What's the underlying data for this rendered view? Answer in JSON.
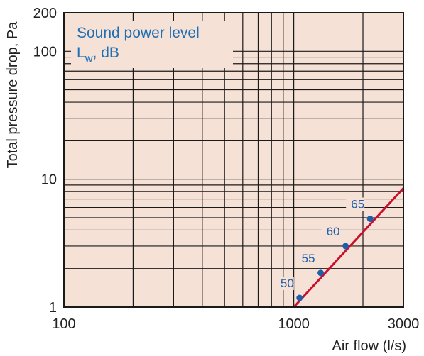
{
  "chart_data": {
    "type": "line",
    "x_scale": "log",
    "y_scale": "log",
    "xlim": [
      100,
      3000
    ],
    "ylim": [
      1,
      200
    ],
    "x_ticks": [
      {
        "value": 100,
        "label": "100"
      },
      {
        "value": 1000,
        "label": "1000"
      },
      {
        "value": 3000,
        "label": "3000"
      }
    ],
    "y_ticks": [
      {
        "value": 1,
        "label": "1"
      },
      {
        "value": 10,
        "label": "10"
      },
      {
        "value": 100,
        "label": "100"
      },
      {
        "value": 200,
        "label": "200"
      }
    ],
    "xlabel": "Air flow (l/s)",
    "ylabel": "Total pressure drop, Pa",
    "grid": true,
    "legend": {
      "title_line1": "Sound power level",
      "title_line2_main": "L",
      "title_line2_sub": "w",
      "title_line2_rest": ", dB",
      "placement": "top-left"
    },
    "series": [
      {
        "x": [
          1000,
          3000
        ],
        "y": [
          1,
          8.5
        ]
      }
    ],
    "points": [
      {
        "label": "50",
        "x": 1060,
        "y": 1.18
      },
      {
        "label": "55",
        "x": 1310,
        "y": 1.85
      },
      {
        "label": "60",
        "x": 1680,
        "y": 3.0
      },
      {
        "label": "65",
        "x": 2150,
        "y": 4.9
      }
    ],
    "colors": {
      "plot_background": "#f6e1d6",
      "grid": "#1a1a1a",
      "line": "#c8102e",
      "points": "#1f5fa8",
      "legend_text": "#1f6fb5",
      "point_labels": "#1f5fa8"
    }
  }
}
